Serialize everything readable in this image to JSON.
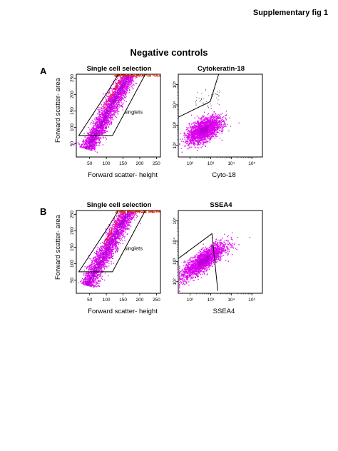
{
  "header": {
    "supplementary_label": "Supplementary fig 1"
  },
  "figure": {
    "title": "Negative controls",
    "panels": [
      {
        "letter": "A",
        "left_plot": {
          "title": "Single cell selection",
          "xlabel": "Forward scatter- height",
          "ylabel": "Forward scatter- area",
          "x_ticks": [
            "50",
            "100",
            "150",
            "200",
            "250"
          ],
          "y_ticks": [
            "50",
            "100",
            "150",
            "200",
            "250"
          ],
          "gate_label": "singlets"
        },
        "right_plot": {
          "title": "Cytokeratin-18",
          "xlabel": "Cyto-18",
          "x_ticks": [
            "10²",
            "10³",
            "10⁴",
            "10⁵"
          ],
          "y_ticks": [
            "10²",
            "10³",
            "10⁴",
            "10⁵"
          ]
        }
      },
      {
        "letter": "B",
        "left_plot": {
          "title": "Single cell selection",
          "xlabel": "Forward scatter- height",
          "ylabel": "Forward scatter- area",
          "x_ticks": [
            "50",
            "100",
            "150",
            "200",
            "250"
          ],
          "y_ticks": [
            "50",
            "100",
            "150",
            "200",
            "250"
          ],
          "gate_label": "singlets"
        },
        "right_plot": {
          "title": "SSEA4",
          "xlabel": "SSEA4",
          "x_ticks": [
            "10²",
            "10³",
            "10⁴",
            "10⁵"
          ],
          "y_ticks": [
            "10²",
            "10³",
            "10⁴",
            "10⁵"
          ]
        }
      }
    ]
  },
  "colors": {
    "events": "#dd00ee",
    "events_dense": "#b800d8",
    "saturation": "#ee2200",
    "gate": "#000000"
  }
}
